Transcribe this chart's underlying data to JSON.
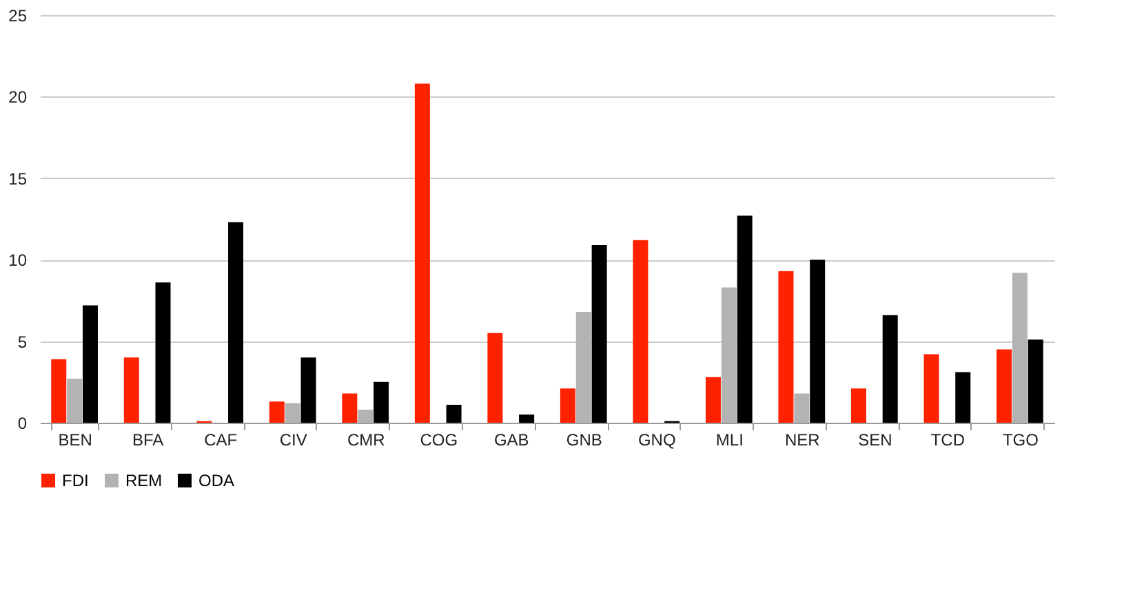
{
  "chart_data": {
    "type": "bar",
    "categories": [
      "BEN",
      "BFA",
      "CAF",
      "CIV",
      "CMR",
      "COG",
      "GAB",
      "GNB",
      "GNQ",
      "MLI",
      "NER",
      "SEN",
      "TCD",
      "TGO"
    ],
    "series": [
      {
        "name": "FDI",
        "color": "#ff2200",
        "values": [
          3.9,
          4.0,
          0.1,
          1.3,
          1.8,
          20.8,
          5.5,
          2.1,
          11.2,
          2.8,
          9.3,
          2.1,
          4.2,
          4.5
        ]
      },
      {
        "name": "REM",
        "color": "#b3b3b3",
        "values": [
          2.7,
          null,
          null,
          1.2,
          0.8,
          null,
          null,
          6.8,
          null,
          8.3,
          1.8,
          null,
          null,
          9.2
        ]
      },
      {
        "name": "ODA",
        "color": "#000000",
        "values": [
          7.2,
          8.6,
          12.3,
          4.0,
          2.5,
          1.1,
          0.5,
          10.9,
          0.1,
          12.7,
          10.0,
          6.6,
          3.1,
          5.1
        ]
      }
    ],
    "ylim": [
      0,
      25
    ],
    "yticks": [
      0,
      5,
      10,
      15,
      20,
      25
    ],
    "grid": "y",
    "legend": "bottom"
  }
}
